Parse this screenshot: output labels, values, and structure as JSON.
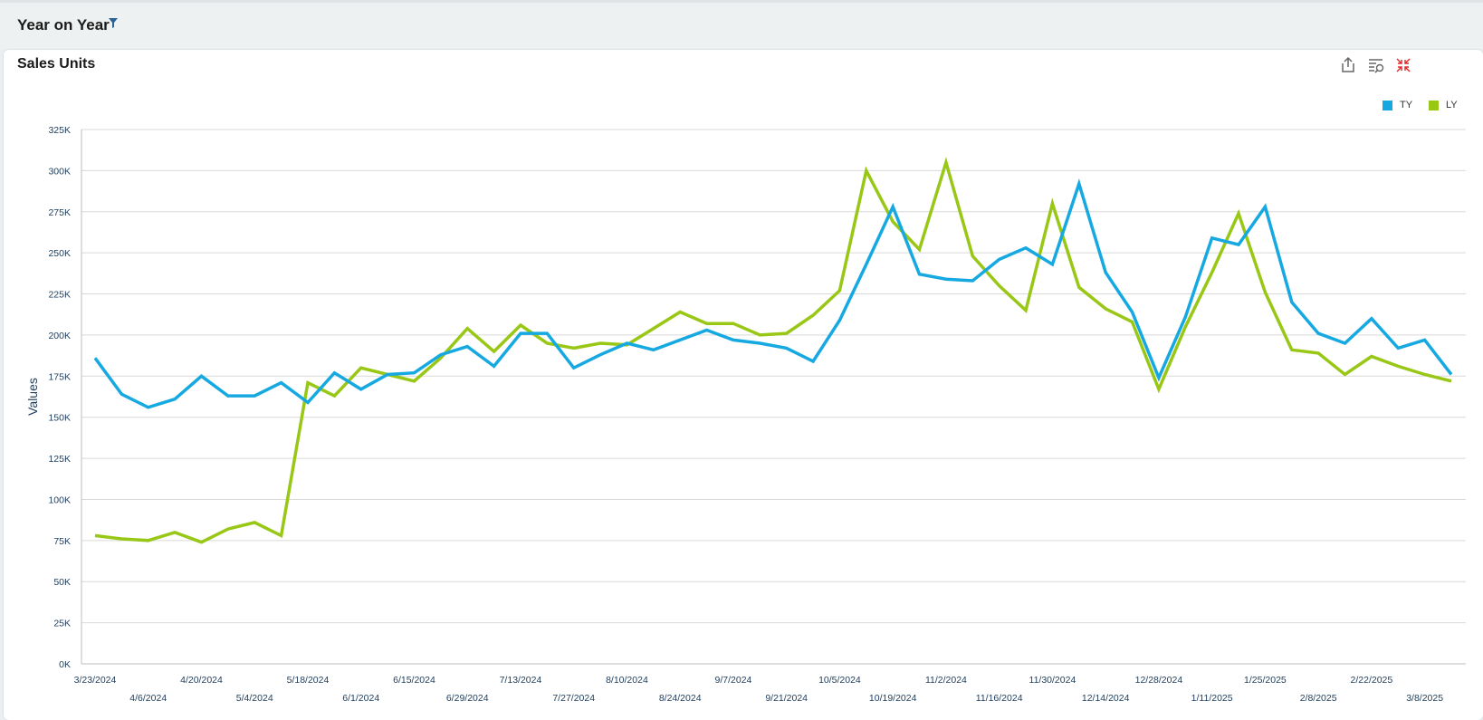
{
  "header": {
    "title": "Year on Year",
    "filter_icon": "filter-icon"
  },
  "card": {
    "title": "Sales Units",
    "toolbar": {
      "export_icon": "export-icon",
      "explore_icon": "explore-icon",
      "collapse_icon": "collapse-icon"
    }
  },
  "colors": {
    "ty": "#16a9e1",
    "ly": "#98c716",
    "grid": "#d9d9d9",
    "accent": "#2a6496"
  },
  "chart_data": {
    "type": "line",
    "title": "Sales Units",
    "xlabel": "",
    "ylabel": "Values",
    "ylim": [
      0,
      325000
    ],
    "yticks": [
      0,
      25000,
      50000,
      75000,
      100000,
      125000,
      150000,
      175000,
      200000,
      225000,
      250000,
      275000,
      300000,
      325000
    ],
    "ytick_labels": [
      "0K",
      "25K",
      "50K",
      "75K",
      "100K",
      "125K",
      "150K",
      "175K",
      "200K",
      "225K",
      "250K",
      "275K",
      "300K",
      "325K"
    ],
    "grid": true,
    "legend_position": "top-right",
    "x": [
      "3/23/2024",
      "3/30/2024",
      "4/6/2024",
      "4/13/2024",
      "4/20/2024",
      "4/27/2024",
      "5/4/2024",
      "5/11/2024",
      "5/18/2024",
      "5/25/2024",
      "6/1/2024",
      "6/8/2024",
      "6/15/2024",
      "6/22/2024",
      "6/29/2024",
      "7/6/2024",
      "7/13/2024",
      "7/20/2024",
      "7/27/2024",
      "8/3/2024",
      "8/10/2024",
      "8/17/2024",
      "8/24/2024",
      "8/31/2024",
      "9/7/2024",
      "9/14/2024",
      "9/21/2024",
      "9/28/2024",
      "10/5/2024",
      "10/12/2024",
      "10/19/2024",
      "10/26/2024",
      "11/2/2024",
      "11/9/2024",
      "11/16/2024",
      "11/23/2024",
      "11/30/2024",
      "12/7/2024",
      "12/14/2024",
      "12/21/2024",
      "12/28/2024",
      "1/4/2025",
      "1/11/2025",
      "1/18/2025",
      "1/25/2025",
      "2/1/2025",
      "2/8/2025",
      "2/15/2025",
      "2/22/2025",
      "3/1/2025",
      "3/8/2025",
      "3/15/2025"
    ],
    "x_tick_labels": [
      {
        "index": 0,
        "label": "3/23/2024",
        "row": 0
      },
      {
        "index": 2,
        "label": "4/6/2024",
        "row": 1
      },
      {
        "index": 4,
        "label": "4/20/2024",
        "row": 0
      },
      {
        "index": 6,
        "label": "5/4/2024",
        "row": 1
      },
      {
        "index": 8,
        "label": "5/18/2024",
        "row": 0
      },
      {
        "index": 10,
        "label": "6/1/2024",
        "row": 1
      },
      {
        "index": 12,
        "label": "6/15/2024",
        "row": 0
      },
      {
        "index": 14,
        "label": "6/29/2024",
        "row": 1
      },
      {
        "index": 16,
        "label": "7/13/2024",
        "row": 0
      },
      {
        "index": 18,
        "label": "7/27/2024",
        "row": 1
      },
      {
        "index": 20,
        "label": "8/10/2024",
        "row": 0
      },
      {
        "index": 22,
        "label": "8/24/2024",
        "row": 1
      },
      {
        "index": 24,
        "label": "9/7/2024",
        "row": 0
      },
      {
        "index": 26,
        "label": "9/21/2024",
        "row": 1
      },
      {
        "index": 28,
        "label": "10/5/2024",
        "row": 0
      },
      {
        "index": 30,
        "label": "10/19/2024",
        "row": 1
      },
      {
        "index": 32,
        "label": "11/2/2024",
        "row": 0
      },
      {
        "index": 34,
        "label": "11/16/2024",
        "row": 1
      },
      {
        "index": 36,
        "label": "11/30/2024",
        "row": 0
      },
      {
        "index": 38,
        "label": "12/14/2024",
        "row": 1
      },
      {
        "index": 40,
        "label": "12/28/2024",
        "row": 0
      },
      {
        "index": 42,
        "label": "1/11/2025",
        "row": 1
      },
      {
        "index": 44,
        "label": "1/25/2025",
        "row": 0
      },
      {
        "index": 46,
        "label": "2/8/2025",
        "row": 1
      },
      {
        "index": 48,
        "label": "2/22/2025",
        "row": 0
      },
      {
        "index": 50,
        "label": "3/8/2025",
        "row": 1
      }
    ],
    "series": [
      {
        "name": "TY",
        "color": "#16a9e1",
        "values": [
          186000,
          164000,
          156000,
          161000,
          175000,
          163000,
          163000,
          171000,
          159000,
          177000,
          167000,
          176000,
          177000,
          188000,
          193000,
          181000,
          201000,
          201000,
          180000,
          188000,
          195000,
          191000,
          197000,
          203000,
          197000,
          195000,
          192000,
          184000,
          209000,
          243000,
          278000,
          237000,
          234000,
          233000,
          246000,
          253000,
          243000,
          292000,
          238000,
          214000,
          174000,
          211000,
          259000,
          255000,
          278000,
          220000,
          201000,
          195000,
          210000,
          192000,
          197000,
          176000
        ]
      },
      {
        "name": "LY",
        "color": "#98c716",
        "values": [
          78000,
          76000,
          75000,
          80000,
          74000,
          82000,
          86000,
          78000,
          171000,
          163000,
          180000,
          176000,
          172000,
          186000,
          204000,
          190000,
          206000,
          195000,
          192000,
          195000,
          194000,
          204000,
          214000,
          207000,
          207000,
          200000,
          201000,
          212000,
          227000,
          300000,
          269000,
          252000,
          305000,
          248000,
          230000,
          215000,
          280000,
          229000,
          216000,
          208000,
          167000,
          205000,
          238000,
          274000,
          226000,
          191000,
          189000,
          176000,
          187000,
          181000,
          176000,
          172000
        ]
      }
    ]
  }
}
